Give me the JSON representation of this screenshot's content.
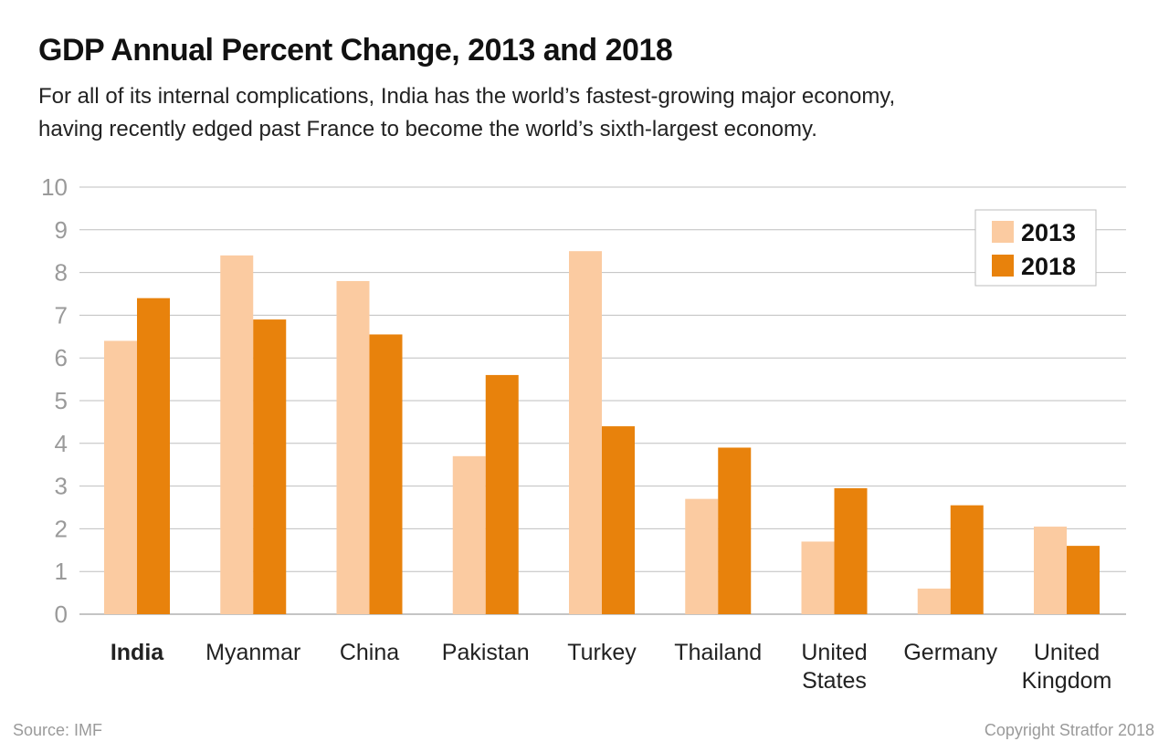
{
  "header": {
    "title": "GDP Annual Percent Change, 2013 and 2018",
    "subtitle_line1": "For all of its internal complications, India has the world’s fastest-growing major economy,",
    "subtitle_line2": "having recently edged past France to become the world’s sixth-largest economy."
  },
  "footer": {
    "source": "Source: IMF",
    "copyright": "Copyright Stratfor 2018"
  },
  "colors": {
    "s2013": "#FBCBA1",
    "s2018": "#E8820C",
    "grid": "#BFBFBF",
    "tick": "#9A9A9A"
  },
  "chart_data": {
    "type": "bar",
    "title": "GDP Annual Percent Change, 2013 and 2018",
    "xlabel": "",
    "ylabel": "",
    "ylim": [
      0,
      10
    ],
    "yticks": [
      0,
      1,
      2,
      3,
      4,
      5,
      6,
      7,
      8,
      9,
      10
    ],
    "grid": true,
    "legend_position": "top-right",
    "categories": [
      [
        "India"
      ],
      [
        "Myanmar"
      ],
      [
        "China"
      ],
      [
        "Pakistan"
      ],
      [
        "Turkey"
      ],
      [
        "Thailand"
      ],
      [
        "United",
        "States"
      ],
      [
        "Germany"
      ],
      [
        "United",
        "Kingdom"
      ]
    ],
    "highlight_category": 0,
    "series": [
      {
        "name": "2013",
        "values": [
          6.4,
          8.4,
          7.8,
          3.7,
          8.5,
          2.7,
          1.7,
          0.6,
          2.05
        ]
      },
      {
        "name": "2018",
        "values": [
          7.4,
          6.9,
          6.55,
          5.6,
          4.4,
          3.9,
          2.95,
          2.55,
          1.6
        ]
      }
    ]
  }
}
